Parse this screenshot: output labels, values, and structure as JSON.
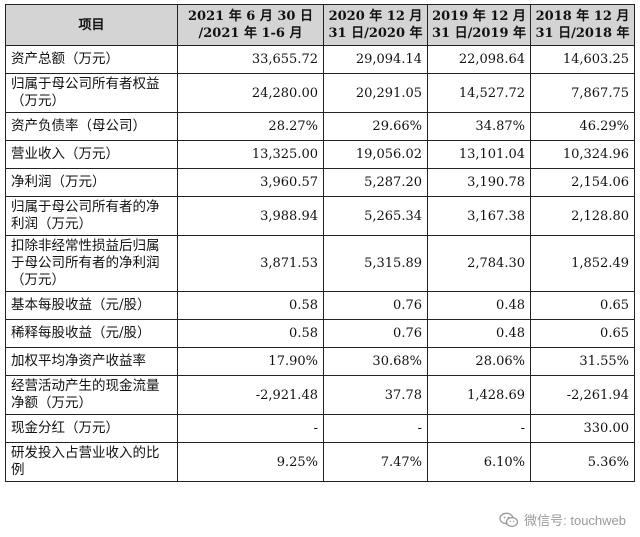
{
  "table": {
    "headers": [
      "项目",
      "2021 年 6 月 30 日\n/2021 年 1-6 月",
      "2020 年 12 月\n31 日/2020 年",
      "2019 年 12 月\n31 日/2019 年",
      "2018 年 12 月\n31 日/2018 年"
    ],
    "rows": [
      {
        "label": "资产总额（万元）",
        "values": [
          "33,655.72",
          "29,094.14",
          "22,098.64",
          "14,603.25"
        ]
      },
      {
        "label": "归属于母公司所有者权益（万元）",
        "values": [
          "24,280.00",
          "20,291.05",
          "14,527.72",
          "7,867.75"
        ]
      },
      {
        "label": "资产负债率（母公司）",
        "values": [
          "28.27%",
          "29.66%",
          "34.87%",
          "46.29%"
        ]
      },
      {
        "label": "营业收入（万元）",
        "values": [
          "13,325.00",
          "19,056.02",
          "13,101.04",
          "10,324.96"
        ]
      },
      {
        "label": "净利润（万元）",
        "values": [
          "3,960.57",
          "5,287.20",
          "3,190.78",
          "2,154.06"
        ]
      },
      {
        "label": "归属于母公司所有者的净利润（万元）",
        "values": [
          "3,988.94",
          "5,265.34",
          "3,167.38",
          "2,128.80"
        ]
      },
      {
        "label": "扣除非经常性损益后归属于母公司所有者的净利润（万元）",
        "values": [
          "3,871.53",
          "5,315.89",
          "2,784.30",
          "1,852.49"
        ]
      },
      {
        "label": "基本每股收益（元/股）",
        "values": [
          "0.58",
          "0.76",
          "0.48",
          "0.65"
        ]
      },
      {
        "label": "稀释每股收益（元/股）",
        "values": [
          "0.58",
          "0.76",
          "0.48",
          "0.65"
        ]
      },
      {
        "label": "加权平均净资产收益率",
        "values": [
          "17.90%",
          "30.68%",
          "28.06%",
          "31.55%"
        ]
      },
      {
        "label": "经营活动产生的现金流量净额（万元）",
        "values": [
          "-2,921.48",
          "37.78",
          "1,428.69",
          "-2,261.94"
        ]
      },
      {
        "label": "现金分红（万元）",
        "values": [
          "-",
          "-",
          "-",
          "330.00"
        ]
      },
      {
        "label": "研发投入占营业收入的比例",
        "values": [
          "9.25%",
          "7.47%",
          "6.10%",
          "5.36%"
        ]
      }
    ]
  },
  "watermark": {
    "text": "微信号: touchweb",
    "icon": "wechat-icon"
  },
  "colors": {
    "header_bg": "#d4d4d4",
    "border": "#222222"
  }
}
